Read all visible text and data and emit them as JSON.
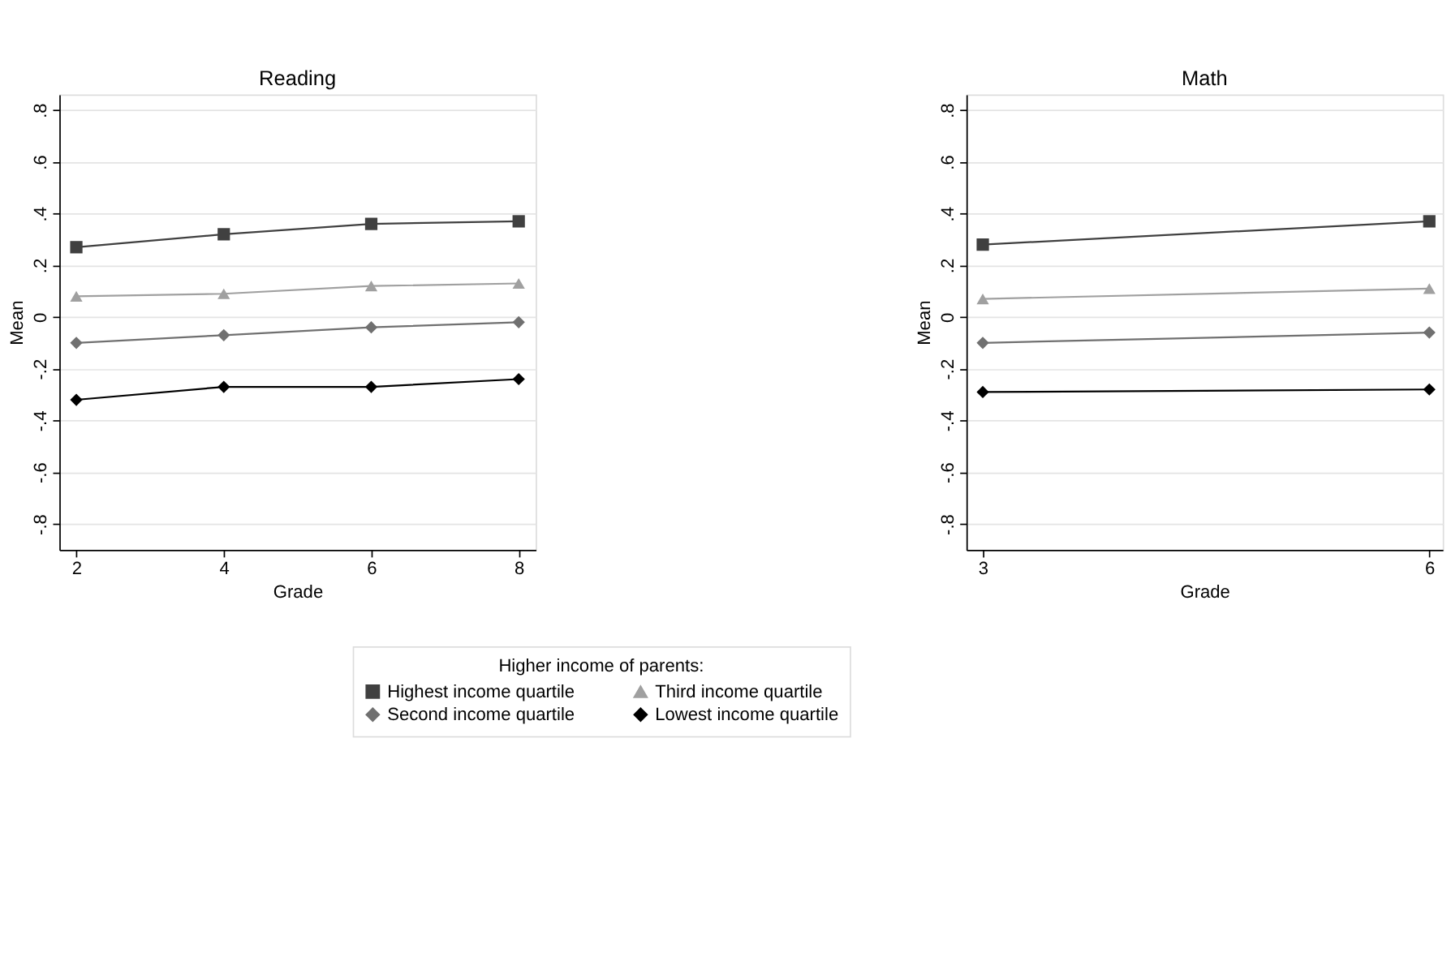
{
  "chart_data": [
    {
      "type": "line",
      "title": "Reading",
      "xlabel": "Grade",
      "ylabel": "Mean",
      "x": [
        2,
        4,
        6,
        8
      ],
      "xlim": [
        1.77,
        8.23
      ],
      "xticks": [
        2,
        4,
        6,
        8
      ],
      "ylim": [
        -0.9,
        0.86
      ],
      "yticks": [
        {
          "value": -0.8,
          "label": "-.8"
        },
        {
          "value": -0.6,
          "label": "-.6"
        },
        {
          "value": -0.4,
          "label": "-.4"
        },
        {
          "value": -0.2,
          "label": "-.2"
        },
        0,
        {
          "value": 0.2,
          "label": ".2"
        },
        {
          "value": 0.4,
          "label": ".4"
        },
        {
          "value": 0.6,
          "label": ".6"
        },
        {
          "value": 0.8,
          "label": ".8"
        }
      ],
      "grid": "y",
      "legend": "bottom",
      "legend_title": "Higher income of parents:",
      "series": [
        {
          "name": "Highest income quartile",
          "color": "#404040",
          "marker": "square",
          "values": [
            0.27,
            0.32,
            0.36,
            0.37
          ]
        },
        {
          "name": "Third income quartile",
          "color": "#a0a0a0",
          "marker": "triangle",
          "values": [
            0.08,
            0.09,
            0.12,
            0.13
          ]
        },
        {
          "name": "Second income quartile",
          "color": "#707070",
          "marker": "diamond",
          "values": [
            -0.1,
            -0.07,
            -0.04,
            -0.02
          ]
        },
        {
          "name": "Lowest income quartile",
          "color": "#000000",
          "marker": "diamond",
          "values": [
            -0.32,
            -0.27,
            -0.27,
            -0.24
          ]
        }
      ]
    },
    {
      "type": "line",
      "title": "Math",
      "xlabel": "Grade",
      "ylabel": "Mean",
      "x": [
        3,
        6
      ],
      "xlim": [
        2.89,
        6.09
      ],
      "xticks": [
        3,
        6
      ],
      "ylim": [
        -0.9,
        0.86
      ],
      "yticks": [
        {
          "value": -0.8,
          "label": "-.8"
        },
        {
          "value": -0.6,
          "label": "-.6"
        },
        {
          "value": -0.4,
          "label": "-.4"
        },
        {
          "value": -0.2,
          "label": "-.2"
        },
        0,
        {
          "value": 0.2,
          "label": ".2"
        },
        {
          "value": 0.4,
          "label": ".4"
        },
        {
          "value": 0.6,
          "label": ".6"
        },
        {
          "value": 0.8,
          "label": ".8"
        }
      ],
      "grid": "y",
      "series": [
        {
          "name": "Highest income quartile",
          "color": "#404040",
          "marker": "square",
          "values": [
            0.28,
            0.37
          ]
        },
        {
          "name": "Third income quartile",
          "color": "#a0a0a0",
          "marker": "triangle",
          "values": [
            0.07,
            0.11
          ]
        },
        {
          "name": "Second income quartile",
          "color": "#707070",
          "marker": "diamond",
          "values": [
            -0.1,
            -0.06
          ]
        },
        {
          "name": "Lowest income quartile",
          "color": "#000000",
          "marker": "diamond",
          "values": [
            -0.29,
            -0.28
          ]
        }
      ]
    }
  ]
}
